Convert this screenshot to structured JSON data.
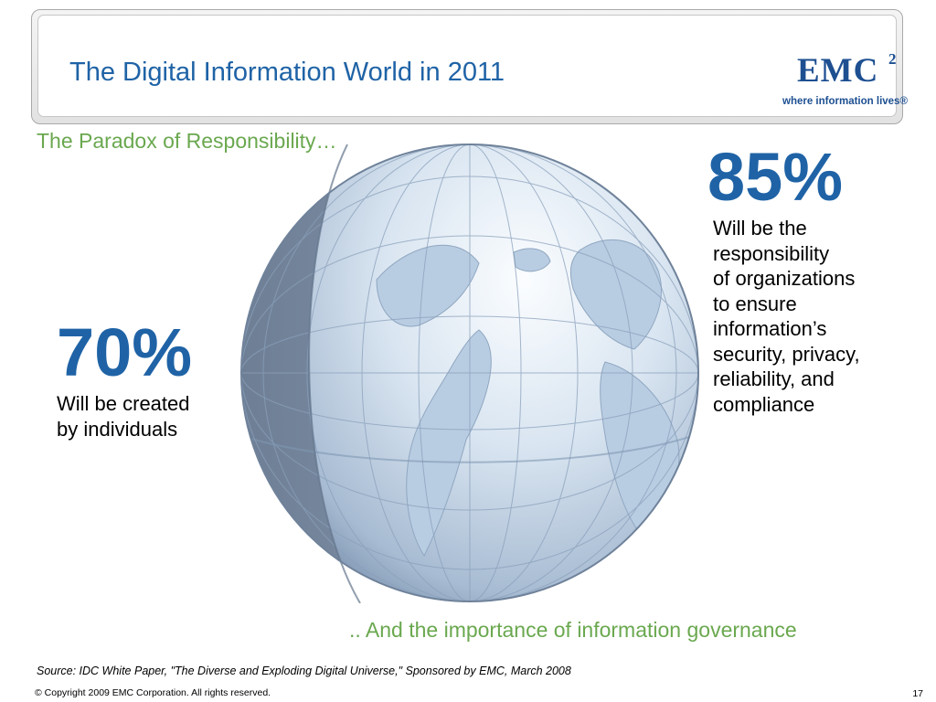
{
  "slide": {
    "title": "The Digital Information World in 2011",
    "subtitle": "The Paradox of Responsibility…",
    "logo": {
      "wordmark": "EMC",
      "superscript": "2",
      "tagline": "where information lives®"
    },
    "globe_icon": "world-globe-icon",
    "stats": [
      {
        "value": "70%",
        "text": "Will be created\nby individuals"
      },
      {
        "value": "85%",
        "text": "Will be the\nresponsibility\nof organizations\nto ensure\ninformation’s\nsecurity, privacy,\nreliability, and\ncompliance"
      }
    ],
    "closing": ".. And the importance of information governance",
    "source": "Source: IDC White Paper, \"The Diverse and Exploding Digital Universe,\" Sponsored by EMC, March 2008",
    "copyright": "© Copyright 2009 EMC Corporation. All rights reserved.",
    "page_number": "17"
  },
  "colors": {
    "title_blue": "#1f63a6",
    "accent_green": "#6aa84f",
    "logo_blue": "#1d4f91"
  }
}
